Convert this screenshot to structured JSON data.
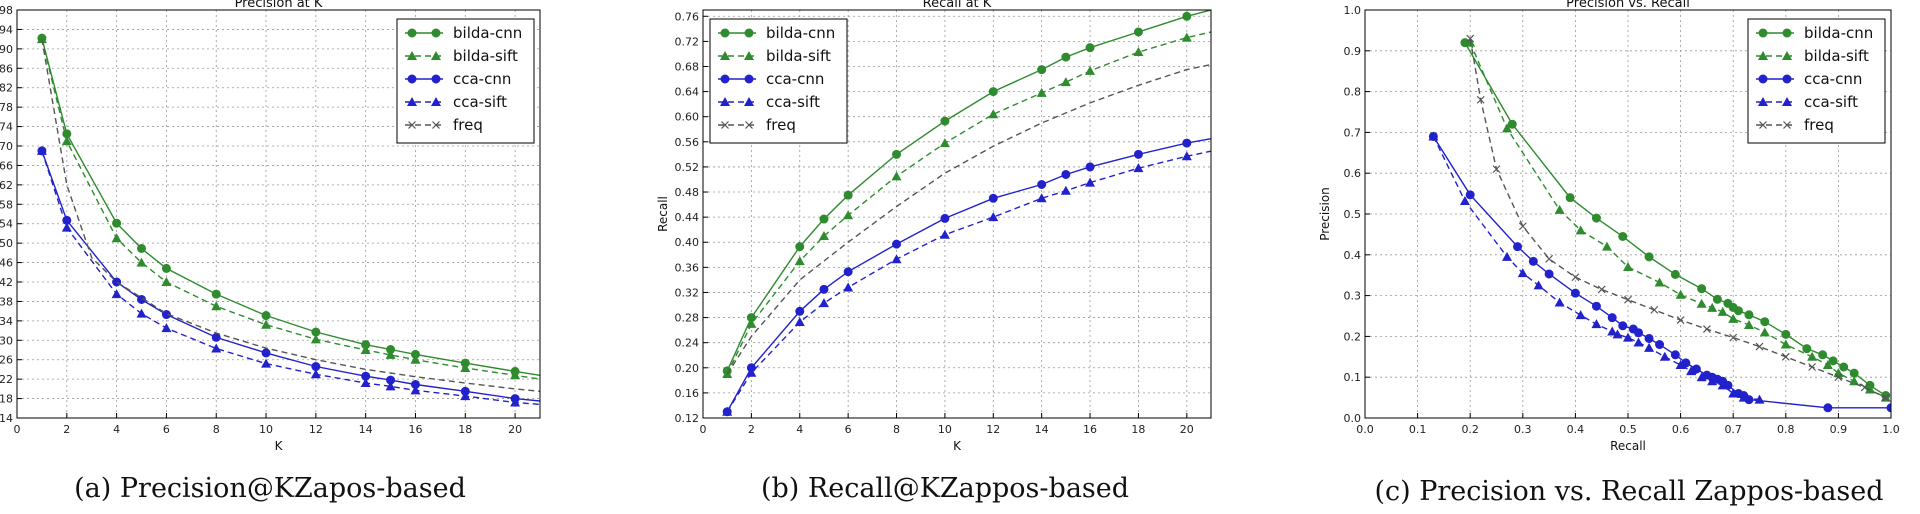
{
  "colors": {
    "green": "#2e8b2e",
    "blue": "#2222cc",
    "gray": "#555555"
  },
  "chart_data": [
    {
      "type": "line",
      "title": "Precision at K",
      "xlabel": "K",
      "ylabel": "",
      "caption": "(a) Precision@KZapos-based",
      "xlim": [
        0,
        21
      ],
      "ylim": [
        0.14,
        0.98
      ],
      "xticks": [
        0,
        2,
        4,
        6,
        8,
        10,
        12,
        14,
        16,
        18,
        20
      ],
      "xtick_labels": [
        "0",
        "2",
        "4",
        "6",
        "8",
        "10",
        "12",
        "14",
        "16",
        "18",
        "20"
      ],
      "yticks": [
        0.14,
        0.18,
        0.22,
        0.26,
        0.3,
        0.34,
        0.38,
        0.42,
        0.46,
        0.5,
        0.54,
        0.58,
        0.62,
        0.66,
        0.7,
        0.74,
        0.78,
        0.82,
        0.86,
        0.9,
        0.94,
        0.98
      ],
      "ytick_labels": [
        "14",
        "18",
        "22",
        "26",
        "30",
        "34",
        "38",
        "42",
        "46",
        "50",
        "54",
        "58",
        "62",
        "66",
        "70",
        "74",
        "78",
        "82",
        "86",
        "90",
        "94",
        "98"
      ],
      "grid": true,
      "legend": "top-right",
      "series": [
        {
          "name": "bilda-cnn",
          "color": "green",
          "dash": "solid",
          "marker": "circle",
          "x": [
            1,
            2,
            4,
            5,
            6,
            8,
            10,
            12,
            14,
            15,
            16,
            18,
            20,
            21
          ],
          "y": [
            0.922,
            0.725,
            0.541,
            0.489,
            0.448,
            0.395,
            0.351,
            0.317,
            0.291,
            0.281,
            0.271,
            0.253,
            0.236,
            0.228
          ],
          "markers": [
            1,
            2,
            4,
            5,
            6,
            8,
            10,
            12,
            14,
            15,
            16,
            18,
            20
          ]
        },
        {
          "name": "bilda-sift",
          "color": "green",
          "dash": "dashed",
          "marker": "triangle",
          "x": [
            1,
            2,
            4,
            5,
            6,
            8,
            10,
            12,
            14,
            15,
            16,
            18,
            20,
            21
          ],
          "y": [
            0.92,
            0.71,
            0.51,
            0.46,
            0.42,
            0.37,
            0.332,
            0.302,
            0.28,
            0.27,
            0.26,
            0.243,
            0.228,
            0.22
          ],
          "markers": [
            1,
            2,
            4,
            5,
            6,
            8,
            10,
            12,
            14,
            15,
            16,
            18,
            20
          ]
        },
        {
          "name": "cca-cnn",
          "color": "blue",
          "dash": "solid",
          "marker": "circle",
          "x": [
            1,
            2,
            4,
            5,
            6,
            8,
            10,
            12,
            14,
            15,
            16,
            18,
            20,
            21
          ],
          "y": [
            0.69,
            0.547,
            0.42,
            0.384,
            0.353,
            0.306,
            0.274,
            0.246,
            0.226,
            0.218,
            0.209,
            0.195,
            0.18,
            0.175
          ],
          "markers": [
            1,
            2,
            4,
            5,
            6,
            8,
            10,
            12,
            14,
            15,
            16,
            18,
            20
          ]
        },
        {
          "name": "cca-sift",
          "color": "blue",
          "dash": "dashed",
          "marker": "triangle",
          "x": [
            1,
            2,
            4,
            5,
            6,
            8,
            10,
            12,
            14,
            15,
            16,
            18,
            20,
            21
          ],
          "y": [
            0.69,
            0.532,
            0.395,
            0.355,
            0.325,
            0.283,
            0.252,
            0.23,
            0.212,
            0.205,
            0.197,
            0.185,
            0.172,
            0.168
          ],
          "markers": [
            1,
            2,
            4,
            5,
            6,
            8,
            10,
            12,
            14,
            15,
            16,
            18,
            20
          ]
        },
        {
          "name": "freq",
          "color": "gray",
          "dash": "dashed",
          "marker": "x",
          "x": [
            1,
            2,
            3,
            4,
            6,
            8,
            10,
            12,
            14,
            16,
            18,
            20,
            21
          ],
          "y": [
            0.92,
            0.62,
            0.47,
            0.42,
            0.355,
            0.315,
            0.284,
            0.26,
            0.24,
            0.225,
            0.212,
            0.2,
            0.195
          ],
          "markers": []
        }
      ]
    },
    {
      "type": "line",
      "title": "Recall at K",
      "xlabel": "K",
      "ylabel": "Recall",
      "caption": "(b) Recall@KZappos-based",
      "xlim": [
        0,
        21
      ],
      "ylim": [
        0.12,
        0.77
      ],
      "xticks": [
        0,
        2,
        4,
        6,
        8,
        10,
        12,
        14,
        16,
        18,
        20
      ],
      "xtick_labels": [
        "0",
        "2",
        "4",
        "6",
        "8",
        "10",
        "12",
        "14",
        "16",
        "18",
        "20"
      ],
      "yticks": [
        0.12,
        0.16,
        0.2,
        0.24,
        0.28,
        0.32,
        0.36,
        0.4,
        0.44,
        0.48,
        0.52,
        0.56,
        0.6,
        0.64,
        0.68,
        0.72,
        0.76
      ],
      "ytick_labels": [
        "0.12",
        "0.16",
        "0.20",
        "0.24",
        "0.28",
        "0.32",
        "0.36",
        "0.40",
        "0.44",
        "0.48",
        "0.52",
        "0.56",
        "0.60",
        "0.64",
        "0.68",
        "0.72",
        "0.76"
      ],
      "grid": true,
      "legend": "top-left",
      "series": [
        {
          "name": "bilda-cnn",
          "color": "green",
          "dash": "solid",
          "marker": "circle",
          "x": [
            1,
            2,
            4,
            5,
            6,
            8,
            10,
            12,
            14,
            15,
            16,
            18,
            20,
            21
          ],
          "y": [
            0.195,
            0.28,
            0.393,
            0.437,
            0.475,
            0.54,
            0.593,
            0.64,
            0.675,
            0.695,
            0.71,
            0.735,
            0.76,
            0.77
          ],
          "markers": [
            1,
            2,
            4,
            5,
            6,
            8,
            10,
            12,
            14,
            15,
            16,
            18,
            20
          ]
        },
        {
          "name": "bilda-sift",
          "color": "green",
          "dash": "dashed",
          "marker": "triangle",
          "x": [
            1,
            2,
            4,
            5,
            6,
            8,
            10,
            12,
            14,
            15,
            16,
            18,
            20,
            21
          ],
          "y": [
            0.19,
            0.27,
            0.37,
            0.41,
            0.443,
            0.505,
            0.558,
            0.604,
            0.638,
            0.655,
            0.673,
            0.703,
            0.726,
            0.735
          ],
          "markers": [
            1,
            2,
            4,
            5,
            6,
            8,
            10,
            12,
            14,
            15,
            16,
            18,
            20
          ]
        },
        {
          "name": "cca-cnn",
          "color": "blue",
          "dash": "solid",
          "marker": "circle",
          "x": [
            1,
            2,
            4,
            5,
            6,
            8,
            10,
            12,
            14,
            15,
            16,
            18,
            20,
            21
          ],
          "y": [
            0.13,
            0.2,
            0.29,
            0.325,
            0.353,
            0.397,
            0.438,
            0.47,
            0.492,
            0.508,
            0.52,
            0.54,
            0.558,
            0.565
          ],
          "markers": [
            1,
            2,
            4,
            5,
            6,
            8,
            10,
            12,
            14,
            15,
            16,
            18,
            20
          ]
        },
        {
          "name": "cca-sift",
          "color": "blue",
          "dash": "dashed",
          "marker": "triangle",
          "x": [
            1,
            2,
            4,
            5,
            6,
            8,
            10,
            12,
            14,
            15,
            16,
            18,
            20,
            21
          ],
          "y": [
            0.13,
            0.192,
            0.273,
            0.303,
            0.328,
            0.373,
            0.412,
            0.44,
            0.47,
            0.482,
            0.495,
            0.518,
            0.537,
            0.545
          ],
          "markers": [
            1,
            2,
            4,
            5,
            6,
            8,
            10,
            12,
            14,
            15,
            16,
            18,
            20
          ]
        },
        {
          "name": "freq",
          "color": "gray",
          "dash": "dashed",
          "marker": "x",
          "x": [
            1,
            2,
            4,
            6,
            8,
            10,
            12,
            14,
            16,
            18,
            20,
            21
          ],
          "y": [
            0.19,
            0.25,
            0.34,
            0.4,
            0.457,
            0.51,
            0.553,
            0.59,
            0.622,
            0.65,
            0.675,
            0.683
          ],
          "markers": []
        }
      ]
    },
    {
      "type": "line",
      "title": "Precision vs. Recall",
      "xlabel": "Recall",
      "ylabel": "Precision",
      "caption": "(c) Precision vs. Recall Zappos-based",
      "xlim": [
        0,
        1
      ],
      "ylim": [
        0,
        1
      ],
      "xticks": [
        0,
        0.1,
        0.2,
        0.3,
        0.4,
        0.5,
        0.6,
        0.7,
        0.8,
        0.9,
        1.0
      ],
      "xtick_labels": [
        "0.0",
        "0.1",
        "0.2",
        "0.3",
        "0.4",
        "0.5",
        "0.6",
        "0.7",
        "0.8",
        "0.9",
        "1.0"
      ],
      "yticks": [
        0,
        0.1,
        0.2,
        0.3,
        0.4,
        0.5,
        0.6,
        0.7,
        0.8,
        0.9,
        1.0
      ],
      "ytick_labels": [
        "0.0",
        "0.1",
        "0.2",
        "0.3",
        "0.4",
        "0.5",
        "0.6",
        "0.7",
        "0.8",
        "0.9",
        "1.0"
      ],
      "grid": true,
      "legend": "top-right",
      "series": [
        {
          "name": "bilda-cnn",
          "color": "green",
          "dash": "solid",
          "marker": "circle",
          "x": [
            0.19,
            0.28,
            0.39,
            0.44,
            0.49,
            0.54,
            0.59,
            0.64,
            0.67,
            0.69,
            0.7,
            0.71,
            0.73,
            0.76,
            0.8,
            0.84,
            0.87,
            0.89,
            0.91,
            0.93,
            0.96,
            0.99
          ],
          "y": [
            0.92,
            0.72,
            0.54,
            0.49,
            0.445,
            0.395,
            0.352,
            0.317,
            0.291,
            0.281,
            0.271,
            0.263,
            0.253,
            0.236,
            0.205,
            0.17,
            0.155,
            0.14,
            0.125,
            0.11,
            0.08,
            0.055
          ],
          "markers": "all"
        },
        {
          "name": "bilda-sift",
          "color": "green",
          "dash": "dashed",
          "marker": "triangle",
          "x": [
            0.2,
            0.27,
            0.37,
            0.41,
            0.46,
            0.5,
            0.56,
            0.6,
            0.64,
            0.66,
            0.68,
            0.7,
            0.73,
            0.76,
            0.8,
            0.85,
            0.88,
            0.9,
            0.93,
            0.96,
            0.99
          ],
          "y": [
            0.92,
            0.71,
            0.51,
            0.46,
            0.42,
            0.37,
            0.332,
            0.302,
            0.28,
            0.27,
            0.26,
            0.243,
            0.228,
            0.21,
            0.18,
            0.15,
            0.13,
            0.11,
            0.09,
            0.07,
            0.05
          ],
          "markers": "all"
        },
        {
          "name": "cca-cnn",
          "color": "blue",
          "dash": "solid",
          "marker": "circle",
          "x": [
            0.13,
            0.2,
            0.29,
            0.32,
            0.35,
            0.4,
            0.44,
            0.47,
            0.49,
            0.51,
            0.52,
            0.54,
            0.56,
            0.59,
            0.61,
            0.63,
            0.65,
            0.66,
            0.67,
            0.68,
            0.69,
            0.71,
            0.72,
            0.73,
            0.88,
            1.0
          ],
          "y": [
            0.69,
            0.547,
            0.42,
            0.384,
            0.353,
            0.306,
            0.274,
            0.246,
            0.226,
            0.218,
            0.209,
            0.195,
            0.18,
            0.155,
            0.135,
            0.12,
            0.105,
            0.1,
            0.095,
            0.09,
            0.08,
            0.06,
            0.055,
            0.045,
            0.025,
            0.025
          ],
          "markers": "all"
        },
        {
          "name": "cca-sift",
          "color": "blue",
          "dash": "dashed",
          "marker": "triangle",
          "x": [
            0.13,
            0.19,
            0.27,
            0.3,
            0.33,
            0.37,
            0.41,
            0.44,
            0.47,
            0.48,
            0.5,
            0.52,
            0.54,
            0.57,
            0.6,
            0.62,
            0.64,
            0.66,
            0.68,
            0.7,
            0.72,
            0.75
          ],
          "y": [
            0.69,
            0.532,
            0.395,
            0.355,
            0.325,
            0.283,
            0.252,
            0.23,
            0.212,
            0.205,
            0.197,
            0.185,
            0.172,
            0.15,
            0.13,
            0.115,
            0.1,
            0.09,
            0.08,
            0.06,
            0.05,
            0.045
          ],
          "markers": "all"
        },
        {
          "name": "freq",
          "color": "gray",
          "dash": "dashed",
          "marker": "x",
          "x": [
            0.2,
            0.22,
            0.25,
            0.3,
            0.35,
            0.4,
            0.45,
            0.5,
            0.55,
            0.6,
            0.65,
            0.7,
            0.75,
            0.8,
            0.85,
            0.9,
            0.95,
            0.99
          ],
          "y": [
            0.93,
            0.78,
            0.61,
            0.47,
            0.39,
            0.345,
            0.315,
            0.29,
            0.265,
            0.24,
            0.218,
            0.197,
            0.175,
            0.15,
            0.125,
            0.1,
            0.075,
            0.05
          ],
          "markers": "all"
        }
      ]
    }
  ]
}
